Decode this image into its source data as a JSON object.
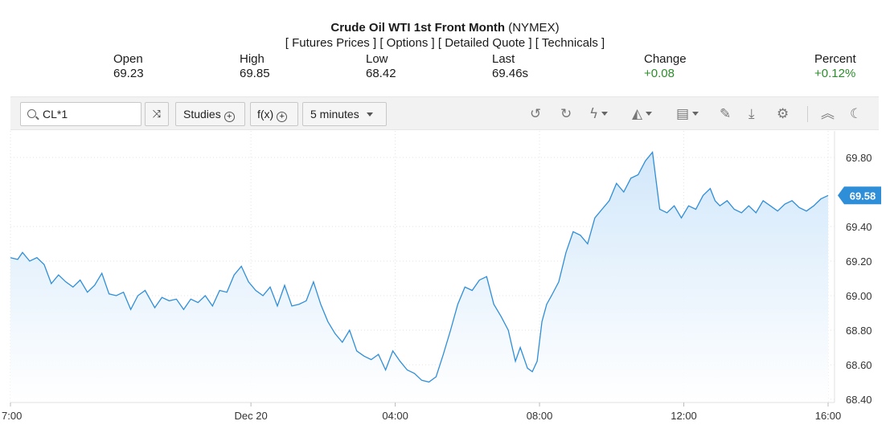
{
  "header": {
    "title": "Crude Oil WTI 1st Front Month",
    "exchange": "(NYMEX)",
    "links": [
      "[ Futures Prices ]",
      "[ Options ]",
      "[ Detailed Quote ]",
      "[ Technicals ]"
    ]
  },
  "quote": {
    "open": {
      "label": "Open",
      "value": "69.23"
    },
    "high": {
      "label": "High",
      "value": "69.85"
    },
    "low": {
      "label": "Low",
      "value": "68.42"
    },
    "last": {
      "label": "Last",
      "value": "69.46s"
    },
    "change": {
      "label": "Change",
      "value": "+0.08"
    },
    "percent": {
      "label": "Percent",
      "value": "+0.12%"
    },
    "up_color": "#2e8b2e"
  },
  "toolbar": {
    "symbol": "CL*1",
    "studies_label": "Studies",
    "fx_label": "f(x)",
    "interval_label": "5 minutes",
    "icons": [
      "search-icon",
      "compare-icon",
      "undo-icon",
      "redo-icon",
      "lightning-icon",
      "chart-style-icon",
      "layout-icon",
      "pencil-icon",
      "download-icon",
      "gear-icon",
      "collapse-icon",
      "moon-icon"
    ]
  },
  "chart_data": {
    "type": "area",
    "title": "",
    "xlabel": "",
    "ylabel": "",
    "ylim": [
      68.4,
      69.9
    ],
    "yticks": [
      "69.80",
      "69.40",
      "69.20",
      "69.00",
      "68.80",
      "68.60",
      "68.40"
    ],
    "xtick_labels": [
      {
        "label": "7:00",
        "t": 0
      },
      {
        "label": "Dec 20",
        "t": 5
      },
      {
        "label": "04:00",
        "t": 8
      },
      {
        "label": "08:00",
        "t": 11
      },
      {
        "label": "12:00",
        "t": 14
      },
      {
        "label": "16:00",
        "t": 17
      }
    ],
    "x_unit": "hours since 7:00",
    "last_value_label": "69.58",
    "line_color": "#2f8ed8",
    "fill_color": "#cfe6fa",
    "series": [
      {
        "x": [
          0,
          0.15,
          0.25,
          0.4,
          0.55,
          0.7,
          0.85,
          1.0,
          1.15,
          1.3,
          1.45,
          1.6,
          1.75,
          1.9,
          2.05,
          2.2,
          2.35,
          2.5,
          2.65,
          2.8,
          3.0,
          3.15,
          3.3,
          3.45,
          3.6,
          3.75,
          3.9,
          4.05,
          4.2,
          4.35,
          4.5,
          4.65,
          4.8,
          4.95,
          5.1,
          5.25,
          5.4,
          5.55,
          5.7,
          5.85,
          6.0,
          6.15,
          6.3,
          6.45,
          6.6,
          6.75,
          6.9,
          7.05,
          7.2,
          7.35,
          7.5,
          7.65,
          7.8,
          7.95,
          8.1,
          8.25,
          8.4,
          8.55,
          8.7,
          8.85,
          9.0,
          9.15,
          9.3,
          9.45,
          9.6,
          9.75,
          9.9,
          10.05,
          10.2,
          10.35,
          10.5,
          10.6,
          10.75,
          10.85,
          10.95,
          11.05,
          11.15,
          11.25,
          11.4,
          11.55,
          11.7,
          11.85,
          12.0,
          12.15,
          12.3,
          12.45,
          12.6,
          12.75,
          12.9,
          13.05,
          13.2,
          13.35,
          13.5,
          13.65,
          13.8,
          13.95,
          14.1,
          14.25,
          14.4,
          14.55,
          14.65,
          14.75,
          14.9,
          15.05,
          15.2,
          15.35,
          15.5,
          15.65,
          15.8,
          15.95,
          16.1,
          16.25,
          16.4,
          16.55,
          16.7,
          16.85,
          17.0
        ],
        "y": [
          69.22,
          69.21,
          69.25,
          69.2,
          69.22,
          69.18,
          69.07,
          69.12,
          69.08,
          69.05,
          69.09,
          69.02,
          69.06,
          69.13,
          69.01,
          69.0,
          69.02,
          68.92,
          69.0,
          69.03,
          68.93,
          68.99,
          68.97,
          68.98,
          68.92,
          68.98,
          68.96,
          69.0,
          68.94,
          69.03,
          69.02,
          69.12,
          69.17,
          69.08,
          69.03,
          69.0,
          69.05,
          68.94,
          69.06,
          68.94,
          68.95,
          68.97,
          69.08,
          68.95,
          68.85,
          68.78,
          68.73,
          68.8,
          68.68,
          68.65,
          68.63,
          68.66,
          68.57,
          68.68,
          68.62,
          68.57,
          68.55,
          68.51,
          68.5,
          68.53,
          68.66,
          68.8,
          68.95,
          69.05,
          69.03,
          69.09,
          69.11,
          68.95,
          68.88,
          68.8,
          68.62,
          68.7,
          68.58,
          68.56,
          68.62,
          68.85,
          68.95,
          69.0,
          69.08,
          69.25,
          69.37,
          69.35,
          69.3,
          69.45,
          69.5,
          69.55,
          69.65,
          69.6,
          69.68,
          69.7,
          69.78,
          69.83,
          69.5,
          69.48,
          69.52,
          69.45,
          69.52,
          69.5,
          69.58,
          69.62,
          69.55,
          69.52,
          69.55,
          69.5,
          69.48,
          69.52,
          69.48,
          69.55,
          69.52,
          69.49,
          69.53,
          69.55,
          69.51,
          69.49,
          69.52,
          69.56,
          69.58
        ]
      }
    ]
  }
}
